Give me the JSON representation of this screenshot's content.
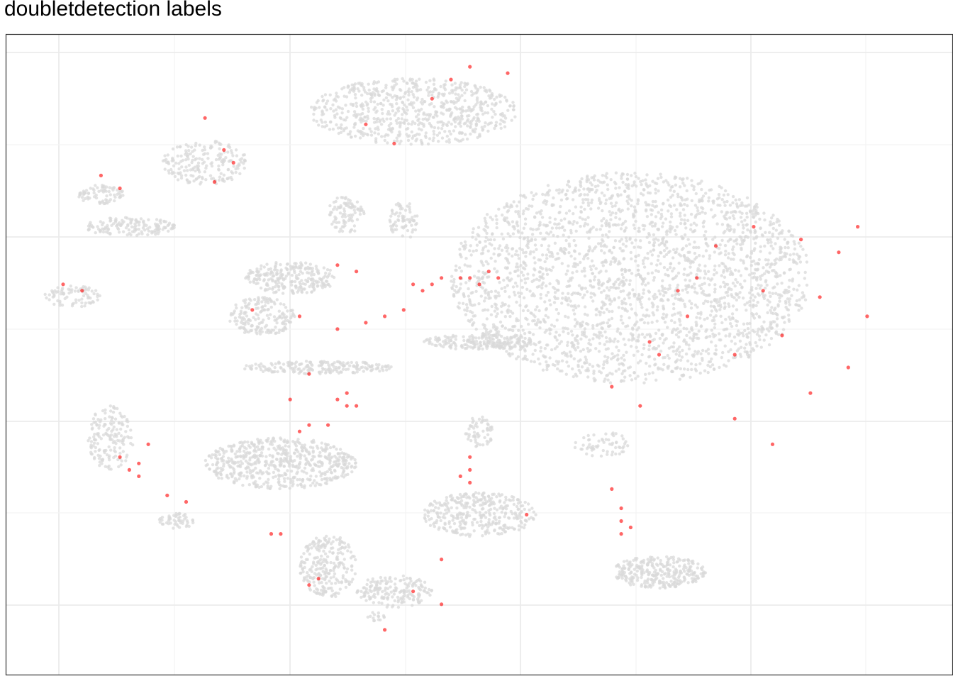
{
  "chart_data": {
    "type": "scatter",
    "title": "doubletdetection labels",
    "xlabel": "",
    "ylabel": "",
    "xlim": [
      0,
      1
    ],
    "ylim": [
      0,
      1
    ],
    "grid": true,
    "legend": "none",
    "colors": {
      "singlet": "#d9d9d9",
      "doublet": "#ff0000",
      "panel_border": "#333333",
      "grid_major": "#ebebeb",
      "grid_minor": "#f3f3f3"
    },
    "series": [
      {
        "kind": "singlet",
        "color": "#d9d9d9",
        "clusters": [
          {
            "cx": 0.66,
            "cy": 0.62,
            "rx": 0.19,
            "ry": 0.165,
            "n": 2600
          },
          {
            "cx": 0.63,
            "cy": 0.36,
            "rx": 0.03,
            "ry": 0.02,
            "n": 60
          },
          {
            "cx": 0.43,
            "cy": 0.88,
            "rx": 0.11,
            "ry": 0.052,
            "n": 700
          },
          {
            "cx": 0.36,
            "cy": 0.72,
            "rx": 0.02,
            "ry": 0.03,
            "n": 90
          },
          {
            "cx": 0.3,
            "cy": 0.62,
            "rx": 0.05,
            "ry": 0.025,
            "n": 250
          },
          {
            "cx": 0.27,
            "cy": 0.56,
            "rx": 0.035,
            "ry": 0.03,
            "n": 180
          },
          {
            "cx": 0.29,
            "cy": 0.33,
            "rx": 0.08,
            "ry": 0.04,
            "n": 600
          },
          {
            "cx": 0.21,
            "cy": 0.8,
            "rx": 0.045,
            "ry": 0.035,
            "n": 200
          },
          {
            "cx": 0.13,
            "cy": 0.7,
            "rx": 0.05,
            "ry": 0.015,
            "n": 150
          },
          {
            "cx": 0.1,
            "cy": 0.75,
            "rx": 0.025,
            "ry": 0.015,
            "n": 80
          },
          {
            "cx": 0.07,
            "cy": 0.59,
            "rx": 0.03,
            "ry": 0.018,
            "n": 80
          },
          {
            "cx": 0.11,
            "cy": 0.37,
            "rx": 0.025,
            "ry": 0.05,
            "n": 160
          },
          {
            "cx": 0.42,
            "cy": 0.71,
            "rx": 0.015,
            "ry": 0.03,
            "n": 70
          },
          {
            "cx": 0.5,
            "cy": 0.25,
            "rx": 0.06,
            "ry": 0.035,
            "n": 350
          },
          {
            "cx": 0.5,
            "cy": 0.38,
            "rx": 0.015,
            "ry": 0.025,
            "n": 60
          },
          {
            "cx": 0.18,
            "cy": 0.24,
            "rx": 0.02,
            "ry": 0.012,
            "n": 50
          },
          {
            "cx": 0.34,
            "cy": 0.17,
            "rx": 0.03,
            "ry": 0.05,
            "n": 250
          },
          {
            "cx": 0.41,
            "cy": 0.13,
            "rx": 0.04,
            "ry": 0.025,
            "n": 180
          },
          {
            "cx": 0.69,
            "cy": 0.16,
            "rx": 0.05,
            "ry": 0.025,
            "n": 300
          },
          {
            "cx": 0.39,
            "cy": 0.09,
            "rx": 0.01,
            "ry": 0.008,
            "n": 15
          },
          {
            "cx": 0.5,
            "cy": 0.52,
            "rx": 0.06,
            "ry": 0.012,
            "n": 200
          },
          {
            "cx": 0.33,
            "cy": 0.48,
            "rx": 0.08,
            "ry": 0.01,
            "n": 200
          }
        ]
      },
      {
        "kind": "doublet",
        "color": "#ff0000",
        "points": [
          [
            0.53,
            0.94
          ],
          [
            0.49,
            0.95
          ],
          [
            0.47,
            0.93
          ],
          [
            0.45,
            0.9
          ],
          [
            0.38,
            0.86
          ],
          [
            0.41,
            0.83
          ],
          [
            0.21,
            0.87
          ],
          [
            0.23,
            0.82
          ],
          [
            0.24,
            0.8
          ],
          [
            0.22,
            0.77
          ],
          [
            0.1,
            0.78
          ],
          [
            0.12,
            0.76
          ],
          [
            0.06,
            0.61
          ],
          [
            0.08,
            0.6
          ],
          [
            0.35,
            0.64
          ],
          [
            0.37,
            0.63
          ],
          [
            0.43,
            0.61
          ],
          [
            0.45,
            0.61
          ],
          [
            0.46,
            0.62
          ],
          [
            0.48,
            0.62
          ],
          [
            0.49,
            0.62
          ],
          [
            0.51,
            0.63
          ],
          [
            0.52,
            0.62
          ],
          [
            0.5,
            0.61
          ],
          [
            0.44,
            0.6
          ],
          [
            0.42,
            0.57
          ],
          [
            0.4,
            0.56
          ],
          [
            0.38,
            0.55
          ],
          [
            0.35,
            0.54
          ],
          [
            0.31,
            0.56
          ],
          [
            0.26,
            0.57
          ],
          [
            0.32,
            0.47
          ],
          [
            0.3,
            0.43
          ],
          [
            0.35,
            0.43
          ],
          [
            0.36,
            0.42
          ],
          [
            0.36,
            0.44
          ],
          [
            0.37,
            0.42
          ],
          [
            0.32,
            0.39
          ],
          [
            0.34,
            0.39
          ],
          [
            0.31,
            0.38
          ],
          [
            0.12,
            0.34
          ],
          [
            0.13,
            0.32
          ],
          [
            0.14,
            0.33
          ],
          [
            0.14,
            0.31
          ],
          [
            0.15,
            0.36
          ],
          [
            0.49,
            0.34
          ],
          [
            0.49,
            0.32
          ],
          [
            0.48,
            0.31
          ],
          [
            0.49,
            0.3
          ],
          [
            0.64,
            0.29
          ],
          [
            0.65,
            0.26
          ],
          [
            0.65,
            0.24
          ],
          [
            0.66,
            0.23
          ],
          [
            0.65,
            0.22
          ],
          [
            0.17,
            0.28
          ],
          [
            0.19,
            0.27
          ],
          [
            0.28,
            0.22
          ],
          [
            0.29,
            0.22
          ],
          [
            0.32,
            0.14
          ],
          [
            0.33,
            0.15
          ],
          [
            0.43,
            0.13
          ],
          [
            0.46,
            0.11
          ],
          [
            0.4,
            0.07
          ],
          [
            0.46,
            0.18
          ],
          [
            0.55,
            0.25
          ],
          [
            0.69,
            0.5
          ],
          [
            0.72,
            0.56
          ],
          [
            0.75,
            0.67
          ],
          [
            0.79,
            0.7
          ],
          [
            0.82,
            0.53
          ],
          [
            0.86,
            0.59
          ],
          [
            0.88,
            0.66
          ],
          [
            0.9,
            0.7
          ],
          [
            0.89,
            0.48
          ],
          [
            0.85,
            0.44
          ],
          [
            0.77,
            0.4
          ],
          [
            0.81,
            0.36
          ],
          [
            0.73,
            0.62
          ],
          [
            0.71,
            0.6
          ],
          [
            0.77,
            0.5
          ],
          [
            0.84,
            0.68
          ],
          [
            0.91,
            0.56
          ],
          [
            0.8,
            0.6
          ],
          [
            0.68,
            0.52
          ],
          [
            0.64,
            0.45
          ],
          [
            0.67,
            0.42
          ]
        ]
      }
    ]
  }
}
